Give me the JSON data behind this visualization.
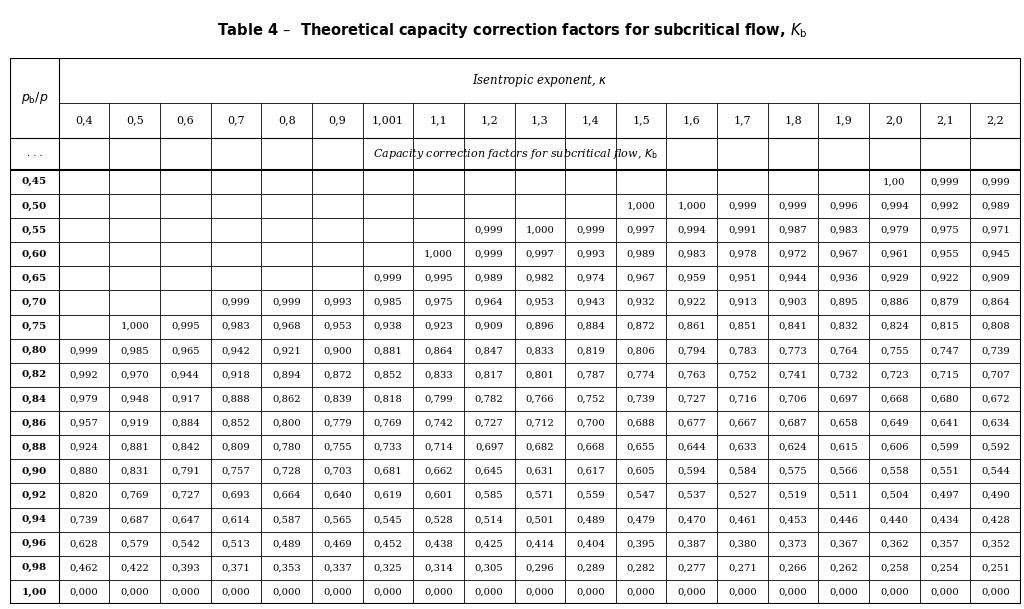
{
  "title": "Table 4 –  Theoretical capacity correction factors for subcritical flow, $K_\\mathrm{b}$",
  "kappa_values": [
    "0,4",
    "0,5",
    "0,6",
    "0,7",
    "0,8",
    "0,9",
    "1,001",
    "1,1",
    "1,2",
    "1,3",
    "1,4",
    "1,5",
    "1,6",
    "1,7",
    "1,8",
    "1,9",
    "2,0",
    "2,1",
    "2,2"
  ],
  "pb_values": [
    "0,45",
    "0,50",
    "0,55",
    "0,60",
    "0,65",
    "0,70",
    "0,75",
    "0,80",
    "0,82",
    "0,84",
    "0,86",
    "0,88",
    "0,90",
    "0,92",
    "0,94",
    "0,96",
    "0,98",
    "1,00"
  ],
  "table_data": [
    [
      "",
      "",
      "",
      "",
      "",
      "",
      "",
      "",
      "",
      "",
      "",
      "",
      "",
      "",
      "",
      "",
      "1,00",
      "0,999",
      "0,999"
    ],
    [
      "",
      "",
      "",
      "",
      "",
      "",
      "",
      "",
      "",
      "",
      "",
      "1,000",
      "1,000",
      "0,999",
      "0,999",
      "0,996",
      "0,994",
      "0,992",
      "0,989"
    ],
    [
      "",
      "",
      "",
      "",
      "",
      "",
      "",
      "",
      "0,999",
      "1,000",
      "0,999",
      "0,997",
      "0,994",
      "0,991",
      "0,987",
      "0,983",
      "0,979",
      "0,975",
      "0,971"
    ],
    [
      "",
      "",
      "",
      "",
      "",
      "",
      "",
      "1,000",
      "0,999",
      "0,997",
      "0,993",
      "0,989",
      "0,983",
      "0,978",
      "0,972",
      "0,967",
      "0,961",
      "0,955",
      "0,945"
    ],
    [
      "",
      "",
      "",
      "",
      "",
      "",
      "0,999",
      "0,995",
      "0,989",
      "0,982",
      "0,974",
      "0,967",
      "0,959",
      "0,951",
      "0,944",
      "0,936",
      "0,929",
      "0,922",
      "0,909"
    ],
    [
      "",
      "",
      "",
      "0,999",
      "0,999",
      "0,993",
      "0,985",
      "0,975",
      "0,964",
      "0,953",
      "0,943",
      "0,932",
      "0,922",
      "0,913",
      "0,903",
      "0,895",
      "0,886",
      "0,879",
      "0,864"
    ],
    [
      "",
      "1,000",
      "0,995",
      "0,983",
      "0,968",
      "0,953",
      "0,938",
      "0,923",
      "0,909",
      "0,896",
      "0,884",
      "0,872",
      "0,861",
      "0,851",
      "0,841",
      "0,832",
      "0,824",
      "0,815",
      "0,808"
    ],
    [
      "0,999",
      "0,985",
      "0,965",
      "0,942",
      "0,921",
      "0,900",
      "0,881",
      "0,864",
      "0,847",
      "0,833",
      "0,819",
      "0,806",
      "0,794",
      "0,783",
      "0,773",
      "0,764",
      "0,755",
      "0,747",
      "0,739"
    ],
    [
      "0,992",
      "0,970",
      "0,944",
      "0,918",
      "0,894",
      "0,872",
      "0,852",
      "0,833",
      "0,817",
      "0,801",
      "0,787",
      "0,774",
      "0,763",
      "0,752",
      "0,741",
      "0,732",
      "0,723",
      "0,715",
      "0,707"
    ],
    [
      "0,979",
      "0,948",
      "0,917",
      "0,888",
      "0,862",
      "0,839",
      "0,818",
      "0,799",
      "0,782",
      "0,766",
      "0,752",
      "0,739",
      "0,727",
      "0,716",
      "0,706",
      "0,697",
      "0,668",
      "0,680",
      "0,672"
    ],
    [
      "0,957",
      "0,919",
      "0,884",
      "0,852",
      "0,800",
      "0,779",
      "0,769",
      "0,742",
      "0,727",
      "0,712",
      "0,700",
      "0,688",
      "0,677",
      "0,667",
      "0,687",
      "0,658",
      "0,649",
      "0,641",
      "0,634"
    ],
    [
      "0,924",
      "0,881",
      "0,842",
      "0,809",
      "0,780",
      "0,755",
      "0,733",
      "0,714",
      "0,697",
      "0,682",
      "0,668",
      "0,655",
      "0,644",
      "0,633",
      "0,624",
      "0,615",
      "0,606",
      "0,599",
      "0,592"
    ],
    [
      "0,880",
      "0,831",
      "0,791",
      "0,757",
      "0,728",
      "0,703",
      "0,681",
      "0,662",
      "0,645",
      "0,631",
      "0,617",
      "0,605",
      "0,594",
      "0,584",
      "0,575",
      "0,566",
      "0,558",
      "0,551",
      "0,544"
    ],
    [
      "0,820",
      "0,769",
      "0,727",
      "0,693",
      "0,664",
      "0,640",
      "0,619",
      "0,601",
      "0,585",
      "0,571",
      "0,559",
      "0,547",
      "0,537",
      "0,527",
      "0,519",
      "0,511",
      "0,504",
      "0,497",
      "0,490"
    ],
    [
      "0,739",
      "0,687",
      "0,647",
      "0,614",
      "0,587",
      "0,565",
      "0,545",
      "0,528",
      "0,514",
      "0,501",
      "0,489",
      "0,479",
      "0,470",
      "0,461",
      "0,453",
      "0,446",
      "0,440",
      "0,434",
      "0,428"
    ],
    [
      "0,628",
      "0,579",
      "0,542",
      "0,513",
      "0,489",
      "0,469",
      "0,452",
      "0,438",
      "0,425",
      "0,414",
      "0,404",
      "0,395",
      "0,387",
      "0,380",
      "0,373",
      "0,367",
      "0,362",
      "0,357",
      "0,352"
    ],
    [
      "0,462",
      "0,422",
      "0,393",
      "0,371",
      "0,353",
      "0,337",
      "0,325",
      "0,314",
      "0,305",
      "0,296",
      "0,289",
      "0,282",
      "0,277",
      "0,271",
      "0,266",
      "0,262",
      "0,258",
      "0,254",
      "0,251"
    ],
    [
      "0,000",
      "0,000",
      "0,000",
      "0,000",
      "0,000",
      "0,000",
      "0,000",
      "0,000",
      "0,000",
      "0,000",
      "0,000",
      "0,000",
      "0,000",
      "0,000",
      "0,000",
      "0,000",
      "0,000",
      "0,000",
      "0,000"
    ]
  ],
  "bg_color": "#ffffff",
  "grid_color": "#000000",
  "font_size_title": 10.5,
  "font_size_header": 8.0,
  "font_size_kappa": 8.0,
  "font_size_cell": 7.2,
  "font_size_pb": 7.5
}
